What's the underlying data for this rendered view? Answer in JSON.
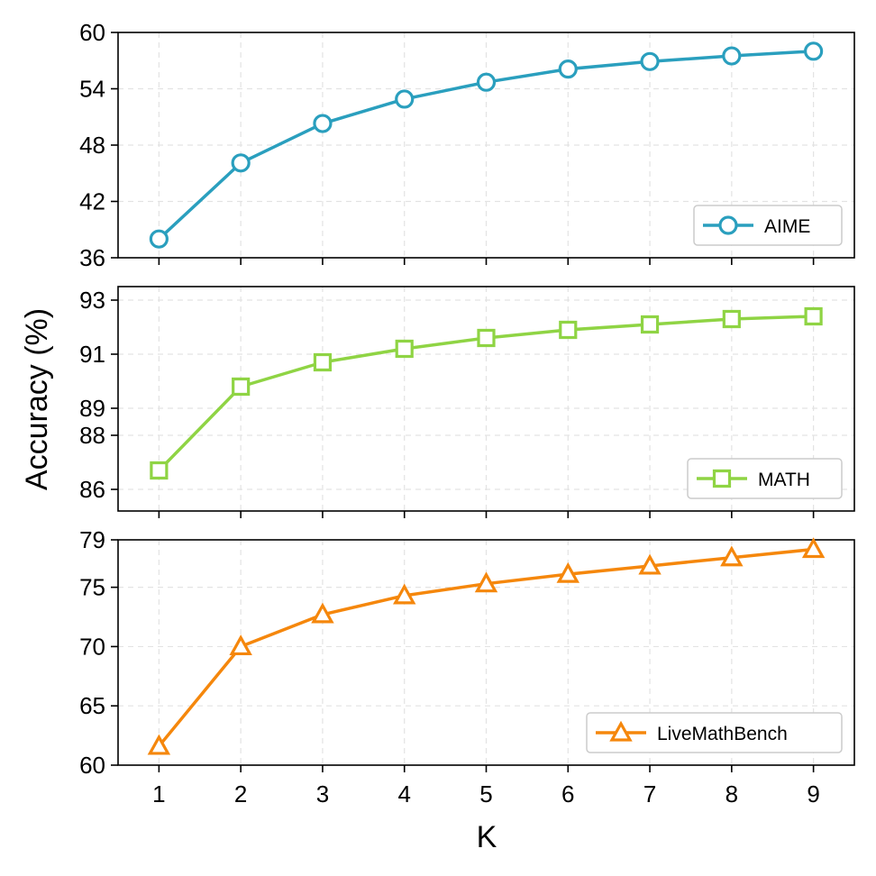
{
  "chart_data": [
    {
      "type": "line",
      "series": [
        {
          "name": "AIME",
          "color": "#2a9fbe",
          "marker": "circle",
          "x": [
            1,
            2,
            3,
            4,
            5,
            6,
            7,
            8,
            9
          ],
          "values": [
            38.0,
            46.1,
            50.3,
            52.9,
            54.7,
            56.1,
            56.9,
            57.5,
            58.0
          ]
        }
      ],
      "ylim": [
        36,
        60
      ],
      "yticks": [
        36,
        42,
        48,
        54,
        60
      ],
      "xlim": [
        0.5,
        9.5
      ],
      "xticks": [
        1,
        2,
        3,
        4,
        5,
        6,
        7,
        8,
        9
      ],
      "legend": "bottom-right",
      "grid": true
    },
    {
      "type": "line",
      "series": [
        {
          "name": "MATH",
          "color": "#8fd444",
          "marker": "square",
          "x": [
            1,
            2,
            3,
            4,
            5,
            6,
            7,
            8,
            9
          ],
          "values": [
            86.7,
            89.8,
            90.7,
            91.2,
            91.6,
            91.9,
            92.1,
            92.3,
            92.4
          ]
        }
      ],
      "ylim": [
        85.2,
        93.5
      ],
      "yticks": [
        86,
        88,
        89,
        91,
        93
      ],
      "ytick_labels": [
        "86",
        "88",
        "89",
        "91",
        "93"
      ],
      "xlim": [
        0.5,
        9.5
      ],
      "xticks": [
        1,
        2,
        3,
        4,
        5,
        6,
        7,
        8,
        9
      ],
      "legend": "bottom-right",
      "grid": true
    },
    {
      "type": "line",
      "series": [
        {
          "name": "LiveMathBench",
          "color": "#f5870c",
          "marker": "triangle",
          "x": [
            1,
            2,
            3,
            4,
            5,
            6,
            7,
            8,
            9
          ],
          "values": [
            61.6,
            70.0,
            72.7,
            74.3,
            75.3,
            76.1,
            76.8,
            77.5,
            78.2
          ]
        }
      ],
      "ylim": [
        60,
        79
      ],
      "yticks": [
        60,
        65,
        70,
        75,
        79
      ],
      "xlim": [
        0.5,
        9.5
      ],
      "xticks": [
        1,
        2,
        3,
        4,
        5,
        6,
        7,
        8,
        9
      ],
      "legend": "bottom-right",
      "grid": true
    }
  ],
  "ylabel": "Accuracy (%)",
  "xlabel": "K"
}
